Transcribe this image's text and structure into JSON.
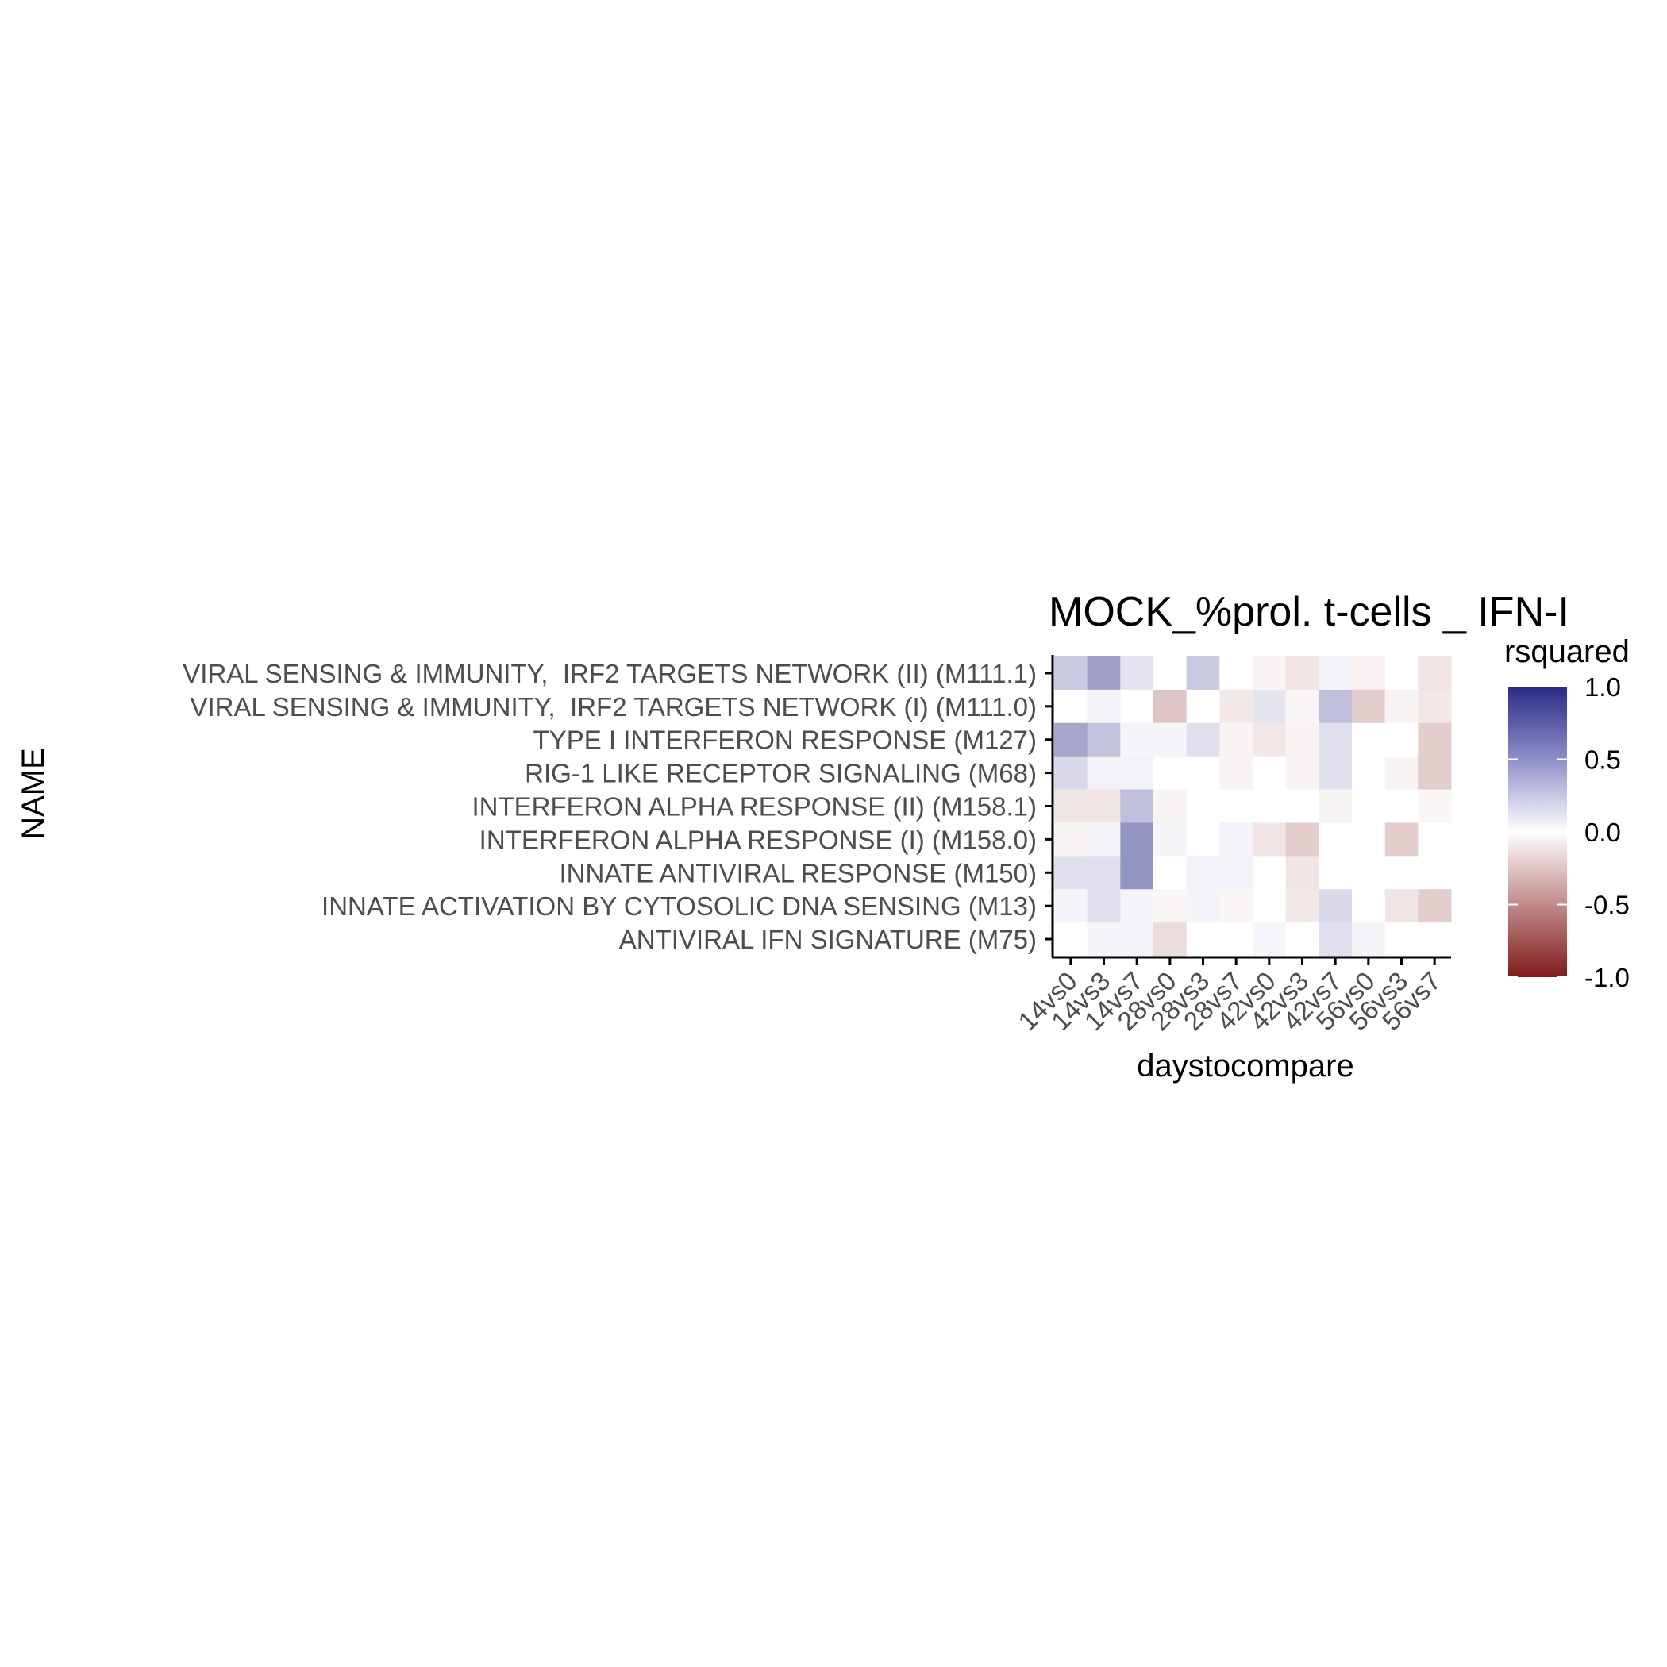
{
  "chart_data": {
    "type": "heatmap",
    "title": "MOCK_%prol. t-cells _ IFN-I",
    "xlabel": "daystocompare",
    "ylabel": "NAME",
    "x_categories": [
      "14vs0",
      "14vs3",
      "14vs7",
      "28vs0",
      "28vs3",
      "28vs7",
      "42vs0",
      "42vs3",
      "42vs7",
      "56vs0",
      "56vs3",
      "56vs7"
    ],
    "y_categories": [
      "VIRAL SENSING & IMMUNITY,  IRF2 TARGETS NETWORK (II) (M111.1)",
      "VIRAL SENSING & IMMUNITY,  IRF2 TARGETS NETWORK (I) (M111.0)",
      "TYPE I INTERFERON RESPONSE (M127)",
      "RIG-1 LIKE RECEPTOR SIGNALING (M68)",
      "INTERFERON ALPHA RESPONSE (II) (M158.1)",
      "INTERFERON ALPHA RESPONSE (I) (M158.0)",
      "INNATE ANTIVIRAL RESPONSE (M150)",
      "INNATE ACTIVATION BY CYTOSOLIC DNA SENSING (M13)",
      "ANTIVIRAL IFN SIGNATURE (M75)"
    ],
    "values": [
      [
        0.25,
        0.45,
        0.12,
        0.0,
        0.25,
        0.0,
        -0.05,
        -0.12,
        0.05,
        -0.06,
        0.0,
        -0.12
      ],
      [
        0.0,
        0.06,
        0.0,
        -0.25,
        0.0,
        -0.1,
        0.12,
        -0.04,
        0.3,
        -0.22,
        -0.05,
        -0.1
      ],
      [
        0.42,
        0.28,
        0.05,
        0.05,
        0.15,
        -0.05,
        -0.1,
        -0.05,
        0.15,
        0.0,
        0.0,
        -0.22
      ],
      [
        0.18,
        0.06,
        0.06,
        0.0,
        0.0,
        -0.05,
        0.0,
        -0.05,
        0.15,
        0.0,
        -0.05,
        -0.22
      ],
      [
        -0.12,
        -0.12,
        0.3,
        -0.05,
        0.0,
        0.0,
        0.0,
        0.0,
        -0.05,
        0.0,
        0.0,
        -0.04
      ],
      [
        -0.05,
        0.05,
        0.5,
        0.05,
        0.0,
        0.06,
        -0.12,
        -0.22,
        0.0,
        0.0,
        -0.22,
        0.0
      ],
      [
        0.15,
        0.15,
        0.5,
        0.0,
        0.06,
        0.06,
        0.0,
        -0.12,
        0.0,
        0.0,
        0.0,
        0.0
      ],
      [
        0.05,
        0.15,
        0.05,
        -0.04,
        0.05,
        -0.04,
        0.0,
        -0.1,
        0.18,
        0.0,
        -0.12,
        -0.22
      ],
      [
        0.0,
        0.05,
        0.05,
        -0.15,
        0.0,
        0.0,
        0.04,
        0.0,
        0.15,
        0.05,
        0.0,
        0.0
      ]
    ],
    "legend": {
      "title": "rsquared",
      "placement": "right",
      "limits": [
        -1.0,
        1.0
      ],
      "ticks": [
        "1.0",
        "0.5",
        "0.0",
        "-0.5",
        "-1.0"
      ],
      "colors": {
        "high": "#2a2a88",
        "mid": "#ffffff",
        "low": "#7f1c1c"
      }
    },
    "grid": false
  }
}
